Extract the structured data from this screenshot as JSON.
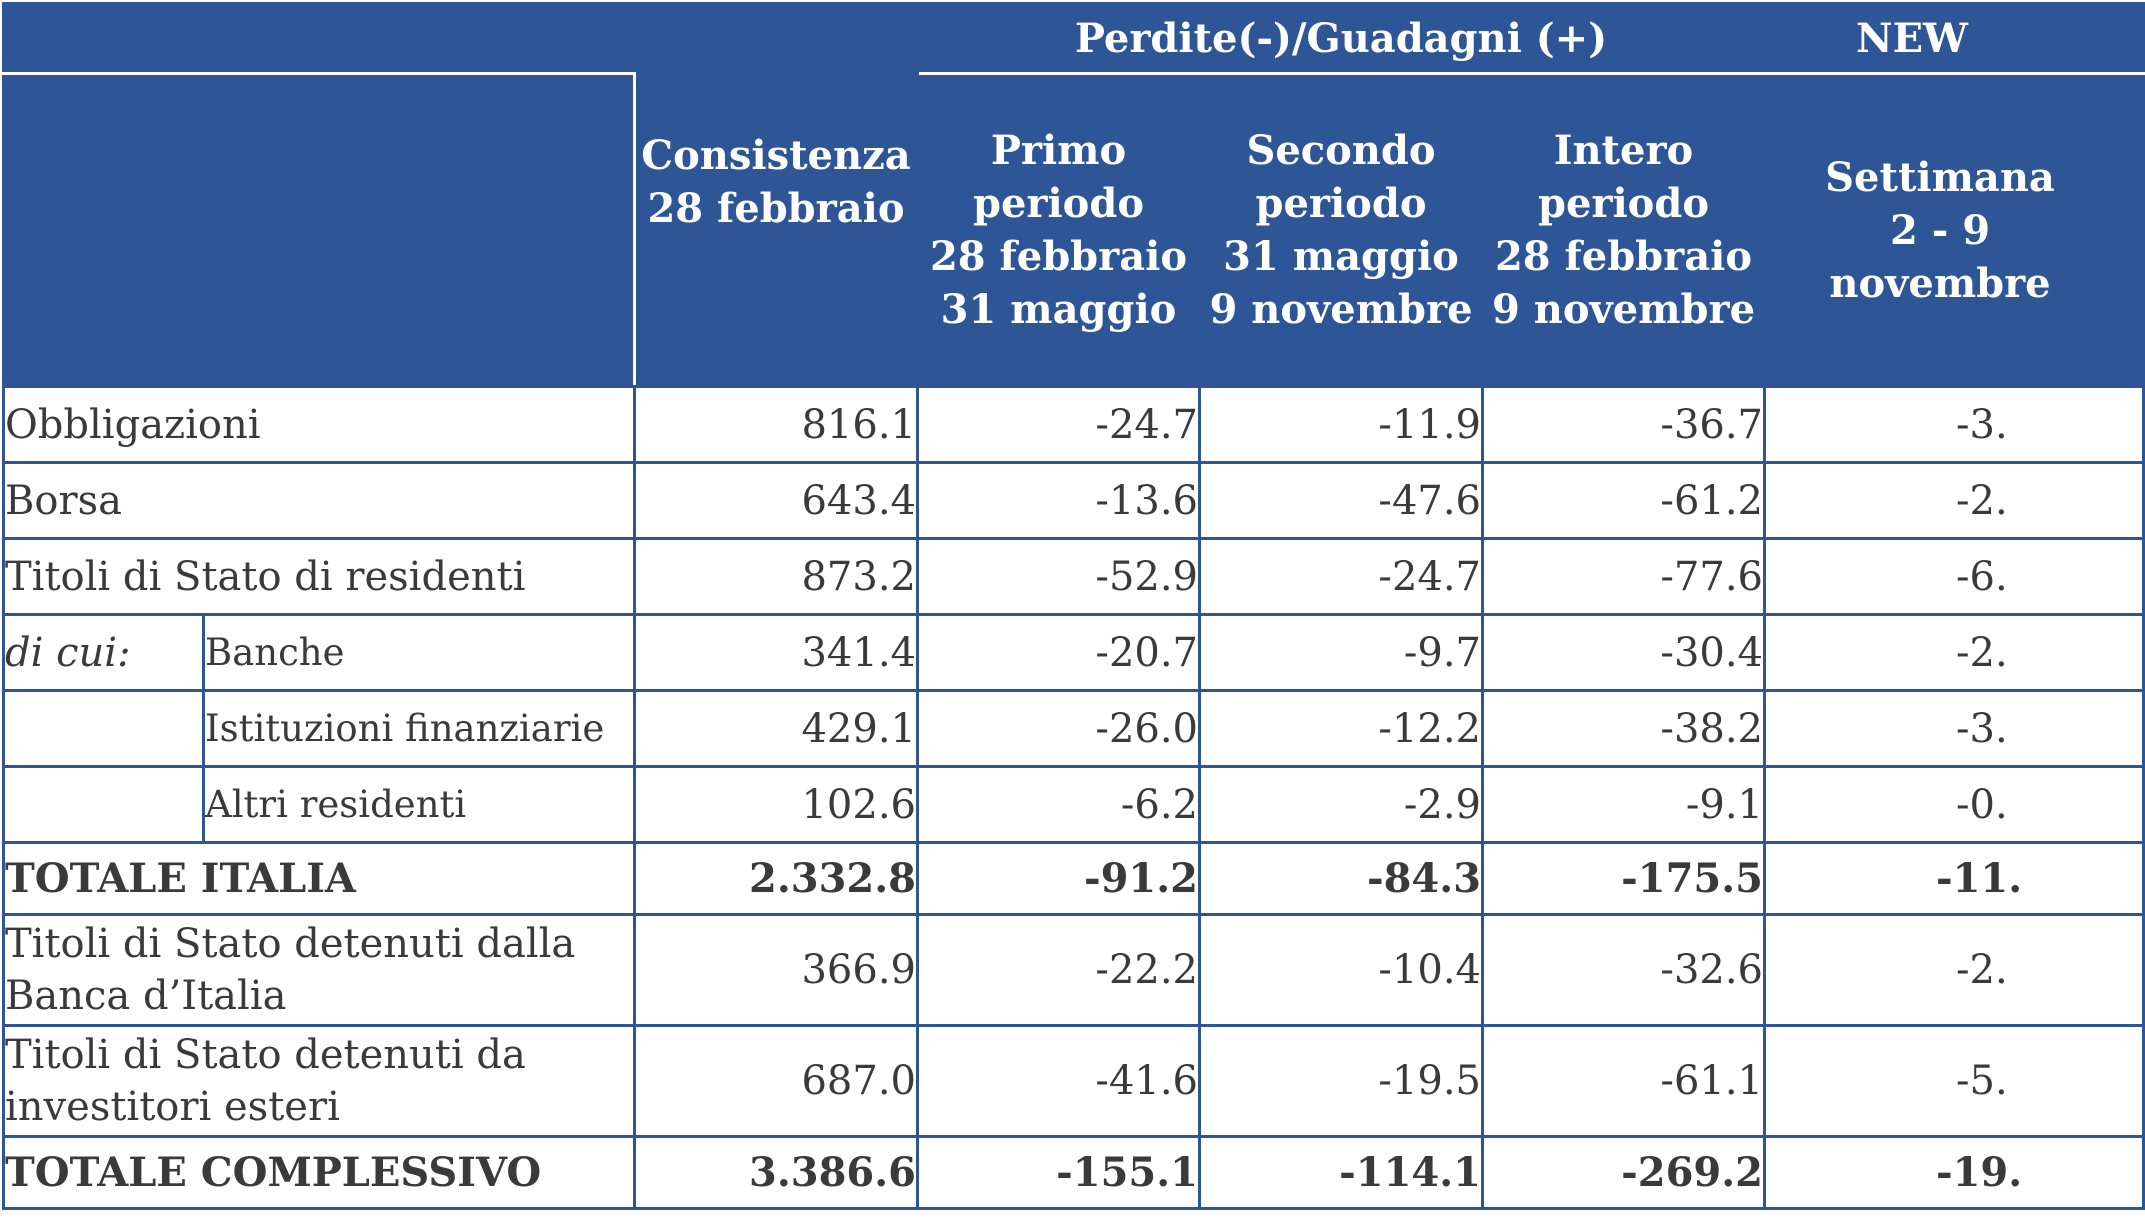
{
  "header": {
    "group_label": "Perdite(-)/Guadagni (+)",
    "new_label": "NEW",
    "columns": [
      "Consistenza\n28 febbraio",
      "Primo\nperiodo\n28 febbraio\n31 maggio",
      "Secondo\nperiodo\n31 maggio\n9 novembre",
      "Intero\nperiodo\n28 febbraio\n9 novembre",
      "Settimana\n2 - 9\nnovembre"
    ]
  },
  "rows": [
    {
      "label": "Obbligazioni",
      "values": [
        "816.1",
        "-24.7",
        "-11.9",
        "-36.7",
        "-3."
      ]
    },
    {
      "label": "Borsa",
      "values": [
        "643.4",
        "-13.6",
        "-47.6",
        "-61.2",
        "-2."
      ]
    },
    {
      "label": "Titoli di Stato di residenti",
      "values": [
        "873.2",
        "-52.9",
        "-24.7",
        "-77.6",
        "-6."
      ]
    },
    {
      "prefix": "di cui:",
      "label": "Banche",
      "values": [
        "341.4",
        "-20.7",
        "-9.7",
        "-30.4",
        "-2."
      ]
    },
    {
      "label": "Istituzioni finanziarie",
      "values": [
        "429.1",
        "-26.0",
        "-12.2",
        "-38.2",
        "-3."
      ]
    },
    {
      "label": "Altri residenti",
      "values": [
        "102.6",
        "-6.2",
        "-2.9",
        "-9.1",
        "-0."
      ]
    },
    {
      "label": "TOTALE ITALIA",
      "values": [
        "2.332.8",
        "-91.2",
        "-84.3",
        "-175.5",
        "-11."
      ]
    },
    {
      "label": "Titoli di Stato detenuti dalla Banca d’Italia",
      "values": [
        "366.9",
        "-22.2",
        "-10.4",
        "-32.6",
        "-2."
      ]
    },
    {
      "label": "Titoli di Stato detenuti da investitori esteri",
      "values": [
        "687.0",
        "-41.6",
        "-19.5",
        "-61.1",
        "-5."
      ]
    },
    {
      "label": "TOTALE COMPLESSIVO",
      "values": [
        "3.386.6",
        "-155.1",
        "-114.1",
        "-269.2",
        "-19."
      ]
    }
  ]
}
